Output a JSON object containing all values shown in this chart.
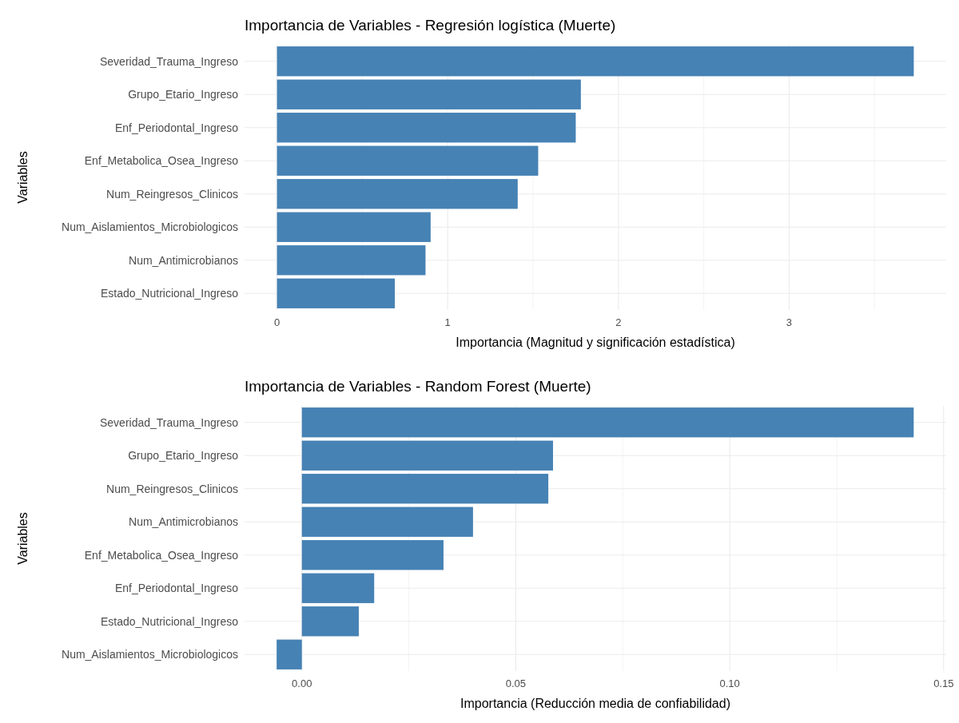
{
  "chart_data": [
    {
      "type": "bar",
      "orientation": "horizontal",
      "title": "Importancia de Variables - Regresión logística (Muerte)",
      "xlabel": "Importancia (Magnitud y significación estadística)",
      "ylabel": "Variables",
      "categories": [
        "Severidad_Trauma_Ingreso",
        "Grupo_Etario_Ingreso",
        "Enf_Periodontal_Ingreso",
        "Enf_Metabolica_Osea_Ingreso",
        "Num_Reingresos_Clinicos",
        "Num_Aislamientos_Microbiologicos",
        "Num_Antimicrobianos",
        "Estado_Nutricional_Ingreso"
      ],
      "values": [
        3.73,
        1.78,
        1.75,
        1.53,
        1.41,
        0.9,
        0.87,
        0.69
      ],
      "color": "#4682b4",
      "xlim": [
        -0.19,
        3.92
      ],
      "xticks": [
        0,
        {
          "value": 0.5,
          "label": null
        },
        1,
        {
          "value": 1.5,
          "label": null
        },
        2,
        {
          "value": 2.5,
          "label": null
        },
        3,
        {
          "value": 3.5,
          "label": null
        }
      ],
      "grid": true
    },
    {
      "type": "bar",
      "orientation": "horizontal",
      "title": "Importancia de Variables - Random Forest (Muerte)",
      "xlabel": "Importancia (Reducción media de confiabilidad)",
      "ylabel": "Variables",
      "categories": [
        "Severidad_Trauma_Ingreso",
        "Grupo_Etario_Ingreso",
        "Num_Reingresos_Clinicos",
        "Num_Antimicrobianos",
        "Enf_Metabolica_Osea_Ingreso",
        "Enf_Periodontal_Ingreso",
        "Estado_Nutricional_Ingreso",
        "Num_Aislamientos_Microbiologicos"
      ],
      "values": [
        0.143,
        0.0587,
        0.0576,
        0.04,
        0.0331,
        0.0169,
        0.0133,
        -0.0059
      ],
      "color": "#4682b4",
      "xlim": [
        -0.0134,
        0.1506
      ],
      "xticks": [
        {
          "value": 0,
          "label": "0.00"
        },
        {
          "value": 0.025,
          "label": null
        },
        {
          "value": 0.05,
          "label": "0.05"
        },
        {
          "value": 0.075,
          "label": null
        },
        {
          "value": 0.1,
          "label": "0.10"
        },
        {
          "value": 0.125,
          "label": null
        },
        {
          "value": 0.15,
          "label": "0.15"
        }
      ],
      "grid": true
    }
  ]
}
